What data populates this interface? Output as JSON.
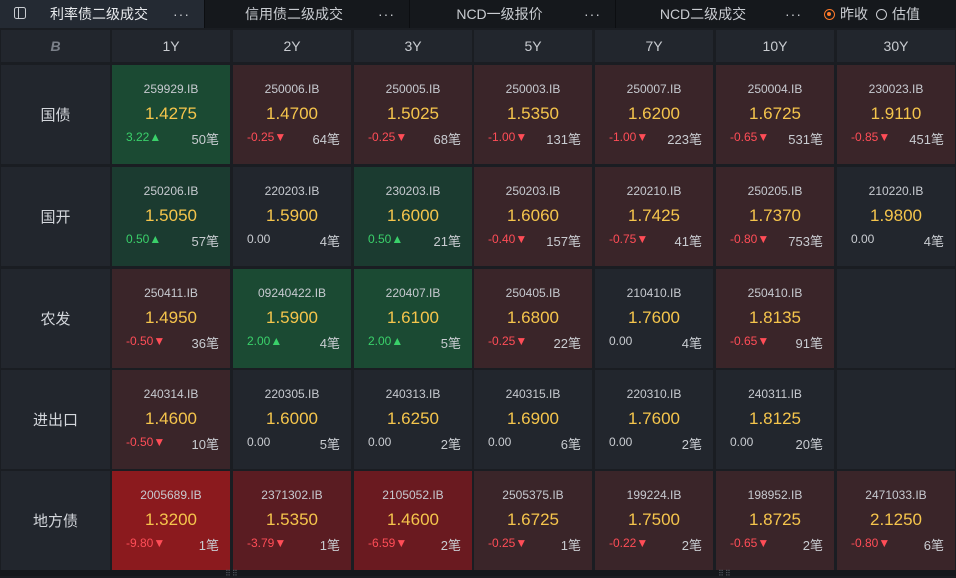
{
  "tabs": [
    {
      "label": "利率债二级成交",
      "more": "···"
    },
    {
      "label": "信用债二级成交",
      "more": "···"
    },
    {
      "label": "NCD一级报价",
      "more": "···"
    },
    {
      "label": "NCD二级成交",
      "more": "···"
    }
  ],
  "radios": [
    {
      "label": "昨收",
      "selected": true
    },
    {
      "label": "估值",
      "selected": false
    }
  ],
  "corner_logo": "B",
  "columns": [
    "1Y",
    "2Y",
    "3Y",
    "5Y",
    "7Y",
    "10Y",
    "30Y"
  ],
  "rows": [
    {
      "label": "国债",
      "cells": [
        {
          "code": "259929.IB",
          "yield": "1.4275",
          "change": "3.22▲",
          "count": "50笔",
          "tone": "green"
        },
        {
          "code": "250006.IB",
          "yield": "1.4700",
          "change": "-0.25▼",
          "count": "64笔",
          "tone": "red1"
        },
        {
          "code": "250005.IB",
          "yield": "1.5025",
          "change": "-0.25▼",
          "count": "68笔",
          "tone": "red1"
        },
        {
          "code": "250003.IB",
          "yield": "1.5350",
          "change": "-1.00▼",
          "count": "131笔",
          "tone": "red1"
        },
        {
          "code": "250007.IB",
          "yield": "1.6200",
          "change": "-1.00▼",
          "count": "223笔",
          "tone": "red1"
        },
        {
          "code": "250004.IB",
          "yield": "1.6725",
          "change": "-0.65▼",
          "count": "531笔",
          "tone": "red1"
        },
        {
          "code": "230023.IB",
          "yield": "1.9110",
          "change": "-0.85▼",
          "count": "451笔",
          "tone": "red1"
        }
      ]
    },
    {
      "label": "国开",
      "cells": [
        {
          "code": "250206.IB",
          "yield": "1.5050",
          "change": "0.50▲",
          "count": "57笔",
          "tone": "green2"
        },
        {
          "code": "220203.IB",
          "yield": "1.5900",
          "change": "0.00",
          "count": "4笔",
          "tone": "neutral"
        },
        {
          "code": "230203.IB",
          "yield": "1.6000",
          "change": "0.50▲",
          "count": "21笔",
          "tone": "green2"
        },
        {
          "code": "250203.IB",
          "yield": "1.6060",
          "change": "-0.40▼",
          "count": "157笔",
          "tone": "red1"
        },
        {
          "code": "220210.IB",
          "yield": "1.7425",
          "change": "-0.75▼",
          "count": "41笔",
          "tone": "red1"
        },
        {
          "code": "250205.IB",
          "yield": "1.7370",
          "change": "-0.80▼",
          "count": "753笔",
          "tone": "red1"
        },
        {
          "code": "210220.IB",
          "yield": "1.9800",
          "change": "0.00",
          "count": "4笔",
          "tone": "neutral"
        }
      ]
    },
    {
      "label": "农发",
      "cells": [
        {
          "code": "250411.IB",
          "yield": "1.4950",
          "change": "-0.50▼",
          "count": "36笔",
          "tone": "red1"
        },
        {
          "code": "09240422.IB",
          "yield": "1.5900",
          "change": "2.00▲",
          "count": "4笔",
          "tone": "green"
        },
        {
          "code": "220407.IB",
          "yield": "1.6100",
          "change": "2.00▲",
          "count": "5笔",
          "tone": "green"
        },
        {
          "code": "250405.IB",
          "yield": "1.6800",
          "change": "-0.25▼",
          "count": "22笔",
          "tone": "red1"
        },
        {
          "code": "210410.IB",
          "yield": "1.7600",
          "change": "0.00",
          "count": "4笔",
          "tone": "neutral"
        },
        {
          "code": "250410.IB",
          "yield": "1.8135",
          "change": "-0.65▼",
          "count": "91笔",
          "tone": "red1"
        },
        {
          "code": "",
          "yield": "",
          "change": "",
          "count": "",
          "tone": "empty"
        }
      ]
    },
    {
      "label": "进出口",
      "cells": [
        {
          "code": "240314.IB",
          "yield": "1.4600",
          "change": "-0.50▼",
          "count": "10笔",
          "tone": "red1"
        },
        {
          "code": "220305.IB",
          "yield": "1.6000",
          "change": "0.00",
          "count": "5笔",
          "tone": "neutral"
        },
        {
          "code": "240313.IB",
          "yield": "1.6250",
          "change": "0.00",
          "count": "2笔",
          "tone": "neutral"
        },
        {
          "code": "240315.IB",
          "yield": "1.6900",
          "change": "0.00",
          "count": "6笔",
          "tone": "neutral"
        },
        {
          "code": "220310.IB",
          "yield": "1.7600",
          "change": "0.00",
          "count": "2笔",
          "tone": "neutral"
        },
        {
          "code": "240311.IB",
          "yield": "1.8125",
          "change": "0.00",
          "count": "20笔",
          "tone": "neutral"
        },
        {
          "code": "",
          "yield": "",
          "change": "",
          "count": "",
          "tone": "empty"
        }
      ]
    },
    {
      "label": "地方债",
      "cells": [
        {
          "code": "2005689.IB",
          "yield": "1.3200",
          "change": "-9.80▼",
          "count": "1笔",
          "tone": "red4"
        },
        {
          "code": "2371302.IB",
          "yield": "1.5350",
          "change": "-3.79▼",
          "count": "1笔",
          "tone": "red3"
        },
        {
          "code": "2105052.IB",
          "yield": "1.4600",
          "change": "-6.59▼",
          "count": "2笔",
          "tone": "red3b"
        },
        {
          "code": "2505375.IB",
          "yield": "1.6725",
          "change": "-0.25▼",
          "count": "1笔",
          "tone": "red1"
        },
        {
          "code": "199224.IB",
          "yield": "1.7500",
          "change": "-0.22▼",
          "count": "2笔",
          "tone": "red1"
        },
        {
          "code": "198952.IB",
          "yield": "1.8725",
          "change": "-0.65▼",
          "count": "2笔",
          "tone": "red1"
        },
        {
          "code": "2471033.IB",
          "yield": "2.1250",
          "change": "-0.80▼",
          "count": "6笔",
          "tone": "red1"
        }
      ]
    }
  ],
  "tone_colors": {
    "green": "#1b4a33",
    "green2": "#1b3b30",
    "red1": "#3a2529",
    "red3": "#5a1c22",
    "red3b": "#6a1a20",
    "red4": "#8b1a1e",
    "neutral": "#22262d",
    "empty": "#22262d"
  },
  "accent": "#ff7a2a"
}
